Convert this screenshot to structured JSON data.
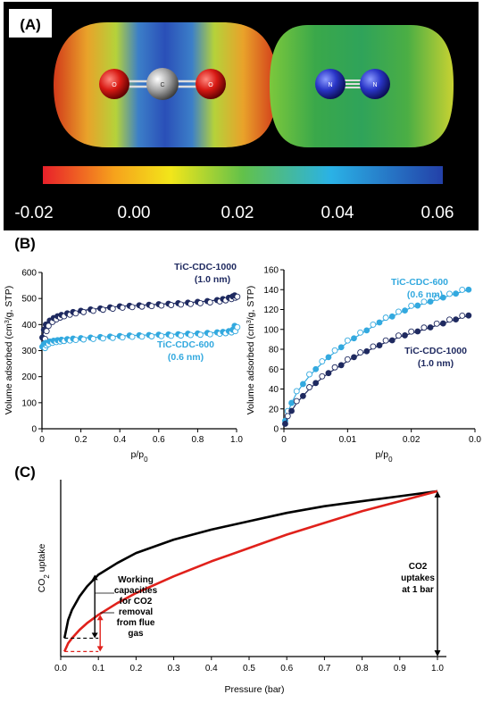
{
  "colors": {
    "dark_series": "#1f2a60",
    "light_series": "#33a9df",
    "black_curve": "#000000",
    "red_curve": "#e0211b"
  },
  "panelA": {
    "label": "(A)",
    "colorbar": {
      "ticks": [
        "-0.02",
        "0.00",
        "0.02",
        "0.04",
        "0.06"
      ],
      "range": [
        -0.02,
        0.06
      ]
    },
    "co2_atoms": [
      "O",
      "C",
      "O"
    ],
    "n2_atoms": [
      "N",
      "N"
    ]
  },
  "panelB": {
    "label": "(B)"
  },
  "panelC": {
    "label": "(C)"
  },
  "chart_data": [
    {
      "id": "B-left",
      "type": "scatter",
      "xlabel": "p/p0",
      "ylabel": "Volume adsorbed (cm3/g, STP)",
      "xlim": [
        0,
        1
      ],
      "ylim": [
        0,
        600
      ],
      "xticks": [
        "0",
        "0.2",
        "0.4",
        "0.6",
        "0.8",
        "1.0"
      ],
      "yticks": [
        "0",
        "100",
        "200",
        "300",
        "400",
        "500",
        "600"
      ],
      "series": [
        {
          "name": "TiC-CDC-1000",
          "sub": "(1.0 nm)",
          "x": [
            0.002,
            0.01,
            0.02,
            0.04,
            0.06,
            0.08,
            0.1,
            0.13,
            0.16,
            0.2,
            0.25,
            0.3,
            0.35,
            0.4,
            0.45,
            0.5,
            0.55,
            0.6,
            0.65,
            0.7,
            0.75,
            0.8,
            0.85,
            0.9,
            0.93,
            0.96,
            0.98,
            0.99
          ],
          "y": [
            350,
            380,
            400,
            415,
            425,
            432,
            437,
            443,
            448,
            453,
            458,
            462,
            466,
            470,
            472,
            474,
            476,
            478,
            480,
            482,
            484,
            487,
            490,
            494,
            498,
            503,
            508,
            512
          ]
        },
        {
          "name": "TiC-CDC-600",
          "sub": "(0.6 nm)",
          "x": [
            0.002,
            0.01,
            0.02,
            0.04,
            0.06,
            0.08,
            0.1,
            0.13,
            0.16,
            0.2,
            0.25,
            0.3,
            0.35,
            0.4,
            0.45,
            0.5,
            0.55,
            0.6,
            0.65,
            0.7,
            0.75,
            0.8,
            0.85,
            0.9,
            0.93,
            0.96,
            0.98,
            0.99
          ],
          "y": [
            315,
            325,
            330,
            335,
            338,
            340,
            342,
            344,
            346,
            348,
            350,
            352,
            354,
            356,
            358,
            359,
            360,
            361,
            362,
            363,
            365,
            366,
            368,
            370,
            372,
            375,
            380,
            395
          ]
        }
      ]
    },
    {
      "id": "B-right",
      "type": "scatter",
      "xlabel": "p/p0",
      "ylabel": "Volume adsorbed (cm3/g, STP)",
      "xlim": [
        0,
        0.03
      ],
      "ylim": [
        0,
        160
      ],
      "xticks": [
        "0",
        "0.01",
        "0.02",
        "0.0"
      ],
      "yticks": [
        "0",
        "20",
        "40",
        "60",
        "80",
        "100",
        "120",
        "140",
        "160"
      ],
      "series": [
        {
          "name": "TiC-CDC-600",
          "sub": "(0.6 nm)",
          "x": [
            0.0002,
            0.0006,
            0.0012,
            0.002,
            0.003,
            0.004,
            0.005,
            0.006,
            0.007,
            0.008,
            0.009,
            0.01,
            0.011,
            0.012,
            0.013,
            0.014,
            0.015,
            0.016,
            0.017,
            0.018,
            0.019,
            0.02,
            0.021,
            0.022,
            0.023,
            0.024,
            0.025,
            0.026,
            0.027,
            0.028,
            0.029
          ],
          "y": [
            8,
            16,
            26,
            36,
            45,
            53,
            60,
            66,
            72,
            77,
            82,
            87,
            91,
            95,
            99,
            103,
            107,
            110,
            113,
            116,
            119,
            122,
            124,
            126,
            128,
            130,
            132,
            134,
            136,
            138,
            140
          ]
        },
        {
          "name": "TiC-CDC-1000",
          "sub": "(1.0 nm)",
          "x": [
            0.0002,
            0.0006,
            0.0012,
            0.002,
            0.003,
            0.004,
            0.005,
            0.006,
            0.007,
            0.008,
            0.009,
            0.01,
            0.011,
            0.012,
            0.013,
            0.014,
            0.015,
            0.016,
            0.017,
            0.018,
            0.019,
            0.02,
            0.021,
            0.022,
            0.023,
            0.024,
            0.025,
            0.026,
            0.027,
            0.028,
            0.029
          ],
          "y": [
            5,
            11,
            18,
            26,
            33,
            40,
            46,
            51,
            56,
            60,
            64,
            68,
            72,
            75,
            78,
            81,
            84,
            87,
            89,
            92,
            94,
            96,
            98,
            100,
            102,
            104,
            106,
            108,
            110,
            112,
            114
          ]
        }
      ]
    },
    {
      "id": "C",
      "type": "line",
      "xlabel": "Pressure (bar)",
      "ylabel": "CO2 uptake",
      "xlim": [
        0,
        1
      ],
      "xticks": [
        "0.0",
        "0.1",
        "0.2",
        "0.3",
        "0.4",
        "0.5",
        "0.6",
        "0.7",
        "0.8",
        "0.9",
        "1.0"
      ],
      "series": [
        {
          "name": "black",
          "x": [
            0.01,
            0.02,
            0.03,
            0.05,
            0.07,
            0.1,
            0.15,
            0.2,
            0.3,
            0.4,
            0.5,
            0.6,
            0.7,
            0.8,
            0.9,
            1.0
          ],
          "y": [
            0.11,
            0.22,
            0.28,
            0.36,
            0.42,
            0.49,
            0.56,
            0.62,
            0.7,
            0.76,
            0.81,
            0.86,
            0.9,
            0.93,
            0.96,
            0.99
          ]
        },
        {
          "name": "red",
          "x": [
            0.01,
            0.02,
            0.03,
            0.05,
            0.07,
            0.1,
            0.15,
            0.2,
            0.3,
            0.4,
            0.5,
            0.6,
            0.7,
            0.8,
            0.9,
            1.0
          ],
          "y": [
            0.03,
            0.08,
            0.11,
            0.16,
            0.2,
            0.25,
            0.32,
            0.38,
            0.48,
            0.57,
            0.65,
            0.73,
            0.8,
            0.87,
            0.93,
            0.99
          ]
        }
      ],
      "annotations": {
        "working": [
          "Working",
          "capacities",
          "for CO2",
          "removal",
          "from flue",
          "gas"
        ],
        "co2_1bar": [
          "CO2",
          "uptakes",
          "at 1 bar"
        ]
      }
    }
  ]
}
